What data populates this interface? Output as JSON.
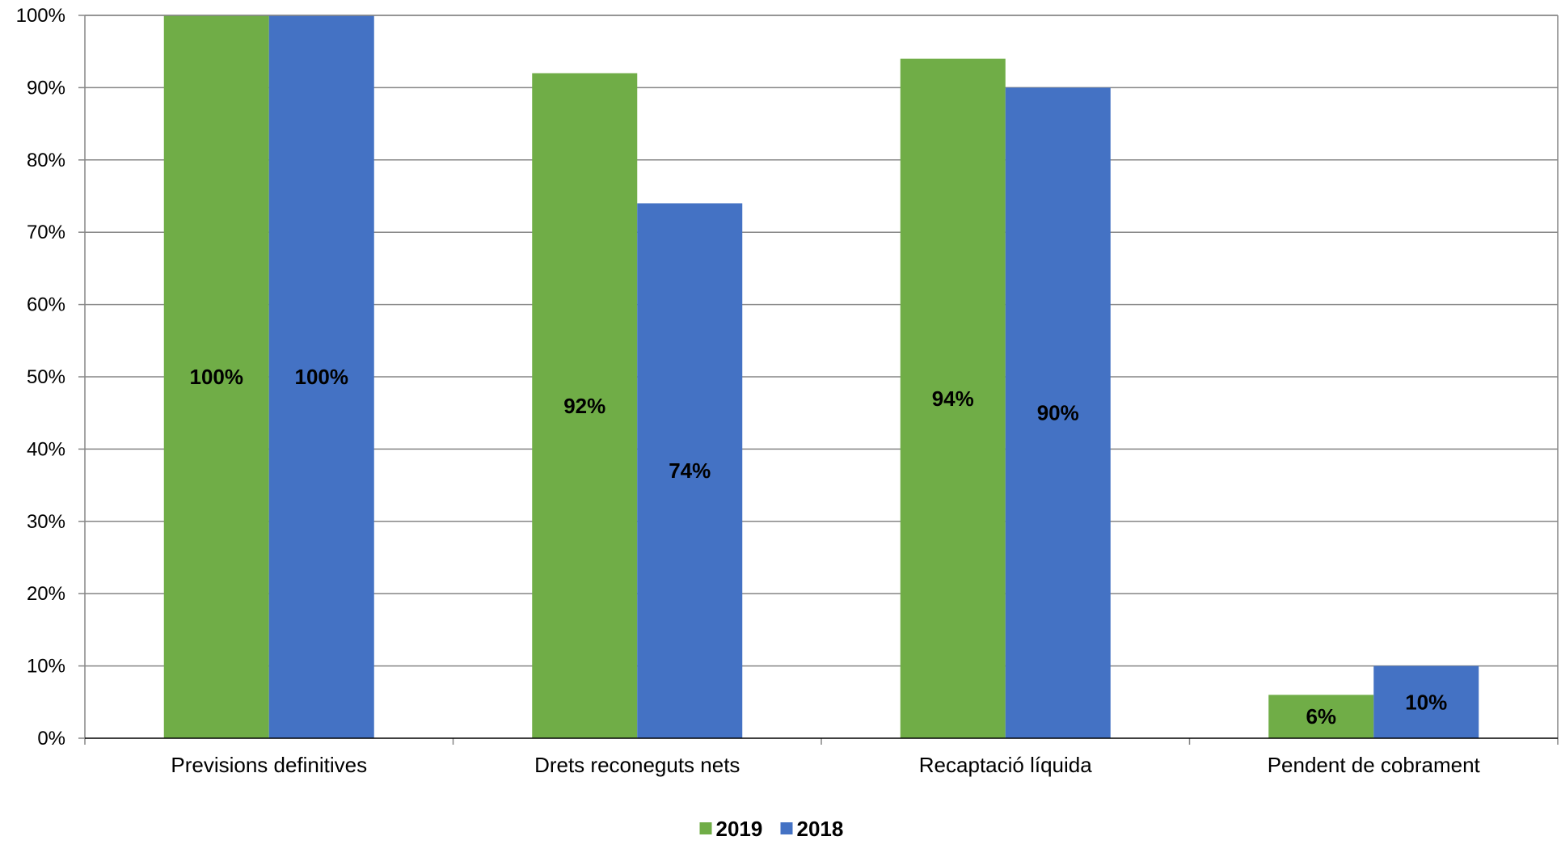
{
  "chart_data": {
    "type": "bar",
    "categories": [
      "Previsions definitives",
      "Drets reconeguts nets",
      "Recaptació líquida",
      "Pendent de cobrament"
    ],
    "series": [
      {
        "name": "2019",
        "color": "#70AD47",
        "values": [
          100,
          92,
          94,
          6
        ],
        "labels": [
          "100%",
          "92%",
          "94%",
          "6%"
        ]
      },
      {
        "name": "2018",
        "color": "#4472C4",
        "values": [
          100,
          74,
          90,
          10
        ],
        "labels": [
          "100%",
          "74%",
          "90%",
          "10%"
        ]
      }
    ],
    "ylim": [
      0,
      100
    ],
    "yticks": [
      0,
      10,
      20,
      30,
      40,
      50,
      60,
      70,
      80,
      90,
      100
    ],
    "ytick_labels": [
      "0%",
      "10%",
      "20%",
      "30%",
      "40%",
      "50%",
      "60%",
      "70%",
      "80%",
      "90%",
      "100%"
    ],
    "grid": true,
    "legend": "bottom-center",
    "title": "",
    "xlabel": "",
    "ylabel": ""
  }
}
